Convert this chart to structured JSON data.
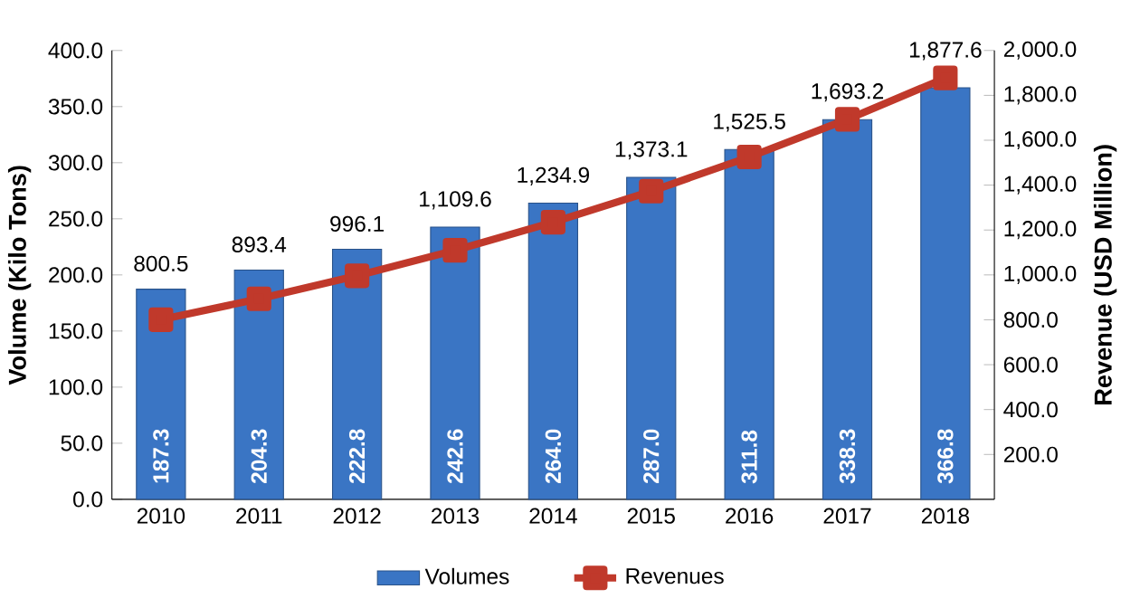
{
  "chart_data": {
    "type": "bar",
    "categories": [
      "2010",
      "2011",
      "2012",
      "2013",
      "2014",
      "2015",
      "2016",
      "2017",
      "2018"
    ],
    "series": [
      {
        "name": "Volumes",
        "color": "#3a75c4",
        "values": [
          187.3,
          204.3,
          222.8,
          242.6,
          264.0,
          287.0,
          311.8,
          338.3,
          366.8
        ],
        "value_labels": [
          "187.3",
          "204.3",
          "222.8",
          "242.6",
          "264.0",
          "287.0",
          "311.8",
          "338.3",
          "366.8"
        ]
      },
      {
        "name": "Revenues",
        "type": "line",
        "axis": "y2",
        "color": "#c0392b",
        "marker": "square",
        "values": [
          800.5,
          893.4,
          996.1,
          1109.6,
          1234.9,
          1373.1,
          1525.5,
          1693.2,
          1877.6
        ],
        "value_labels": [
          "800.5",
          "893.4",
          "996.1",
          "1,109.6",
          "1,234.9",
          "1,373.1",
          "1,525.5",
          "1,693.2",
          "1,877.6"
        ]
      }
    ],
    "ylabel": "Volume (Kilo Tons)",
    "y2label": "Revenue (USD Million)",
    "ylim": [
      0,
      400
    ],
    "yticks": [
      {
        "value": 0,
        "label": "0.0"
      },
      {
        "value": 50,
        "label": "50.0"
      },
      {
        "value": 100,
        "label": "100.0"
      },
      {
        "value": 150,
        "label": "150.0"
      },
      {
        "value": 200,
        "label": "200.0"
      },
      {
        "value": 250,
        "label": "250.0"
      },
      {
        "value": 300,
        "label": "300.0"
      },
      {
        "value": 350,
        "label": "350.0"
      },
      {
        "value": 400,
        "label": "400.0"
      }
    ],
    "y2lim": [
      0,
      2000
    ],
    "y2ticks": [
      {
        "value": 200,
        "label": "200.0"
      },
      {
        "value": 400,
        "label": "400.0"
      },
      {
        "value": 600,
        "label": "600.0"
      },
      {
        "value": 800,
        "label": "800.0"
      },
      {
        "value": 1000,
        "label": "1,000.0"
      },
      {
        "value": 1200,
        "label": "1,200.0"
      },
      {
        "value": 1400,
        "label": "1,400.0"
      },
      {
        "value": 1600,
        "label": "1,600.0"
      },
      {
        "value": 1800,
        "label": "1,800.0"
      },
      {
        "value": 2000,
        "label": "2,000.0"
      }
    ],
    "grid": false,
    "legend": "bottom"
  }
}
